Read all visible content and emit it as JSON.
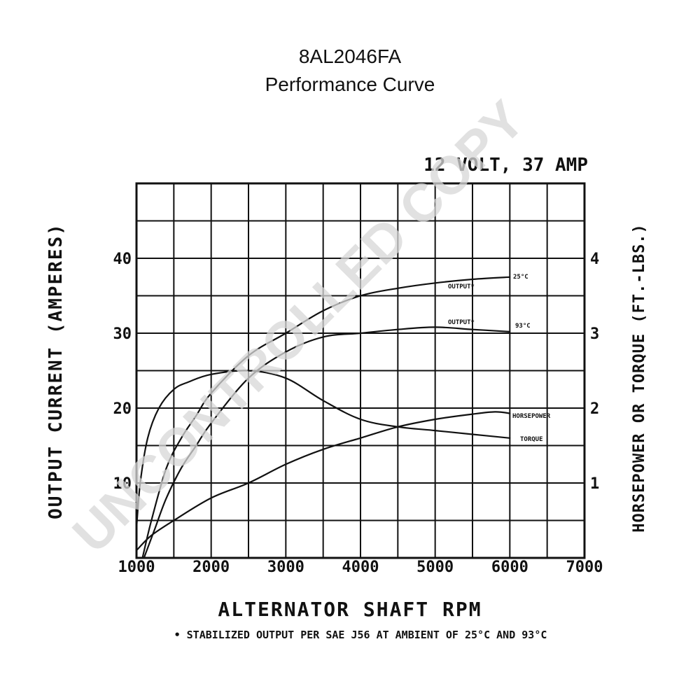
{
  "title_line1": "8AL2046FA",
  "title_line2": "Performance Curve",
  "rating": "12 VOLT, 37 AMP",
  "watermark": "UNCONTROLLED COPY",
  "footnote": "• STABILIZED OUTPUT PER SAE J56 AT AMBIENT OF 25°C AND 93°C",
  "chart_data": {
    "type": "line",
    "xlabel": "ALTERNATOR SHAFT RPM",
    "ylabel_left": "OUTPUT CURRENT (AMPERES)",
    "ylabel_right": "HORSEPOWER OR TORQUE (FT.-LBS.)",
    "xlim": [
      1000,
      7000
    ],
    "ylim_left": [
      0,
      50
    ],
    "ylim_right": [
      0,
      5
    ],
    "x_ticks": [
      1000,
      2000,
      3000,
      4000,
      5000,
      6000,
      7000
    ],
    "x_tick_labels": [
      "1000",
      "2000",
      "3000",
      "4000",
      "5000",
      "6000",
      "7000"
    ],
    "y_left_ticks": [
      10,
      20,
      30,
      40
    ],
    "y_left_tick_labels": [
      "10",
      "20",
      "30",
      "40"
    ],
    "y_right_ticks": [
      1,
      2,
      3,
      4
    ],
    "y_right_tick_labels": [
      "1",
      "2",
      "3",
      "4"
    ],
    "grid": true,
    "series": [
      {
        "name": "OUTPUT* 25°C",
        "axis": "left",
        "points": [
          [
            1080,
            0
          ],
          [
            1200,
            5
          ],
          [
            1400,
            12
          ],
          [
            1600,
            16
          ],
          [
            1800,
            19
          ],
          [
            2000,
            22
          ],
          [
            2500,
            27
          ],
          [
            3000,
            30
          ],
          [
            3500,
            33
          ],
          [
            4000,
            35
          ],
          [
            4500,
            36
          ],
          [
            5000,
            36.7
          ],
          [
            5500,
            37.2
          ],
          [
            6000,
            37.5
          ]
        ]
      },
      {
        "name": "OUTPUT* 93°C",
        "axis": "left",
        "points": [
          [
            1100,
            0
          ],
          [
            1250,
            4
          ],
          [
            1400,
            8
          ],
          [
            1600,
            12
          ],
          [
            1800,
            15
          ],
          [
            2000,
            18
          ],
          [
            2500,
            24
          ],
          [
            3000,
            27.5
          ],
          [
            3500,
            29.5
          ],
          [
            4000,
            30
          ],
          [
            4500,
            30.5
          ],
          [
            5000,
            30.8
          ],
          [
            5500,
            30.5
          ],
          [
            6000,
            30.2
          ]
        ]
      },
      {
        "name": "HORSEPOWER",
        "axis": "right",
        "points": [
          [
            1000,
            0.1
          ],
          [
            1200,
            0.3
          ],
          [
            1500,
            0.5
          ],
          [
            2000,
            0.8
          ],
          [
            2500,
            1.0
          ],
          [
            3000,
            1.25
          ],
          [
            3500,
            1.45
          ],
          [
            4000,
            1.6
          ],
          [
            4500,
            1.75
          ],
          [
            5000,
            1.85
          ],
          [
            5500,
            1.92
          ],
          [
            5800,
            1.95
          ],
          [
            6000,
            1.93
          ]
        ]
      },
      {
        "name": "TORQUE",
        "axis": "right",
        "points": [
          [
            1000,
            0.4
          ],
          [
            1050,
            1.0
          ],
          [
            1150,
            1.6
          ],
          [
            1300,
            2.0
          ],
          [
            1500,
            2.25
          ],
          [
            1700,
            2.35
          ],
          [
            2000,
            2.45
          ],
          [
            2500,
            2.5
          ],
          [
            3000,
            2.4
          ],
          [
            3500,
            2.1
          ],
          [
            4000,
            1.85
          ],
          [
            4500,
            1.75
          ],
          [
            5000,
            1.7
          ],
          [
            5500,
            1.65
          ],
          [
            6000,
            1.6
          ]
        ]
      }
    ]
  },
  "curve_labels": {
    "output_25_a": "OUTPUT*",
    "output_25_b": "25°C",
    "output_93_a": "OUTPUT*",
    "output_93_b": "93°C",
    "horsepower": "HORSEPOWER",
    "torque": "TORQUE"
  }
}
